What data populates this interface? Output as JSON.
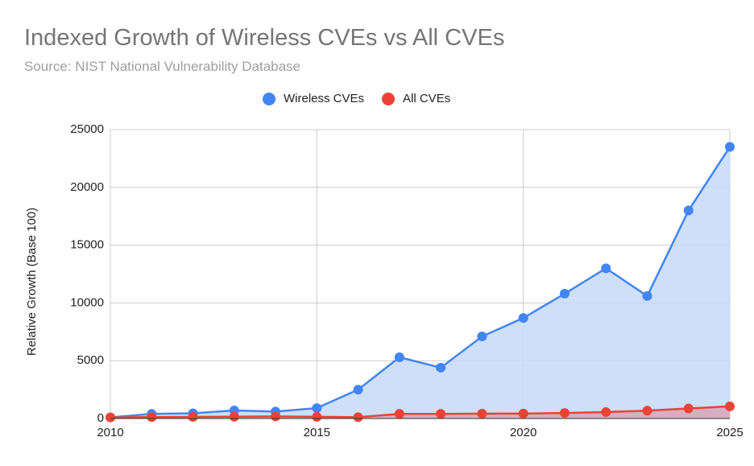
{
  "chart_data": {
    "type": "area",
    "title": "Indexed Growth of Wireless CVEs vs All CVEs",
    "subtitle": "Source: NIST National Vulnerability Database",
    "y_label": "Relative Growth (Base 100)",
    "x": [
      2010,
      2011,
      2012,
      2013,
      2014,
      2015,
      2016,
      2017,
      2018,
      2019,
      2020,
      2021,
      2022,
      2023,
      2024,
      2025
    ],
    "series": [
      {
        "name": "Wireless CVEs",
        "color": "#4285f4",
        "fill": "#c6d9f7",
        "values": [
          100,
          400,
          450,
          700,
          600,
          900,
          2500,
          5300,
          4400,
          7100,
          8700,
          10800,
          13000,
          10600,
          18000,
          23500
        ]
      },
      {
        "name": "All CVEs",
        "color": "#ea4335",
        "fill": "#d7a7b6",
        "values": [
          100,
          120,
          140,
          160,
          180,
          150,
          110,
          400,
          400,
          420,
          430,
          480,
          560,
          680,
          870,
          1050
        ]
      }
    ],
    "xlim": [
      2010,
      2025
    ],
    "xticks": [
      2010,
      2015,
      2020,
      2025
    ],
    "ylim": [
      0,
      25000
    ],
    "yticks": [
      0,
      5000,
      10000,
      15000,
      20000,
      25000
    ],
    "grid": true,
    "legend": "top"
  }
}
